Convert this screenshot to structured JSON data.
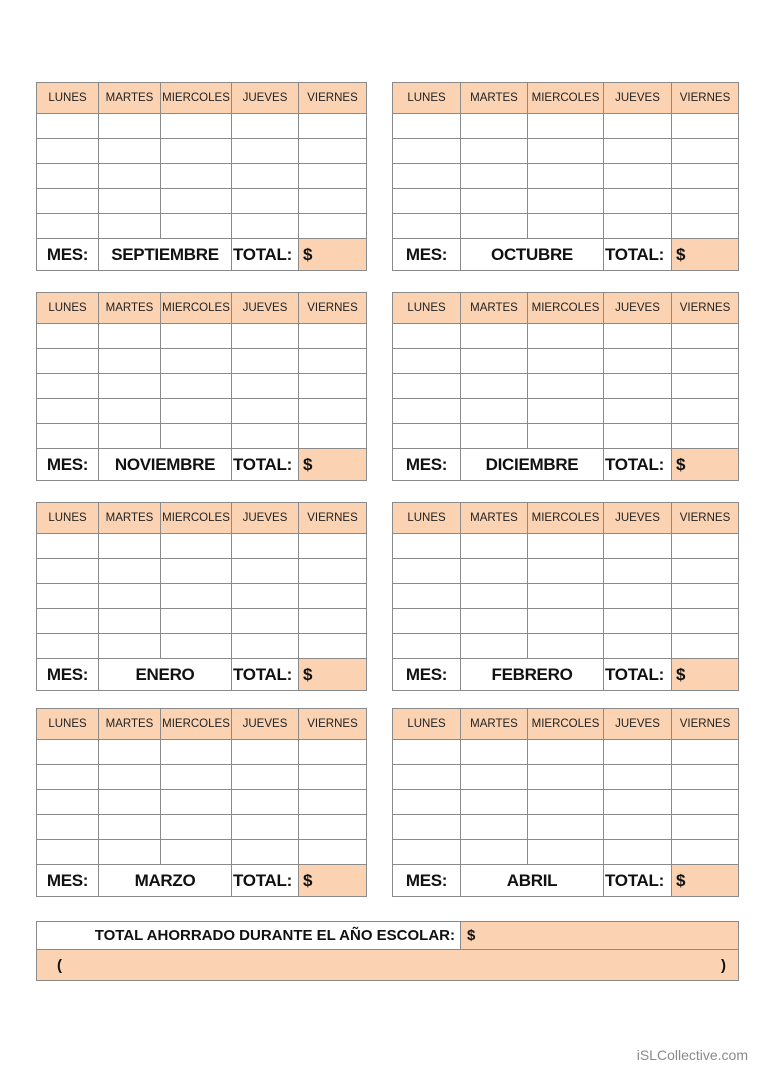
{
  "days": [
    "LUNES",
    "MARTES",
    "MIERCOLES",
    "JUEVES",
    "VIERNES"
  ],
  "mes_label": "MES:",
  "total_label": "TOTAL:",
  "currency": "$",
  "months": [
    "SEPTIEMBRE",
    "OCTUBRE",
    "NOVIEMBRE",
    "DICIEMBRE",
    "ENERO",
    "FEBRERO",
    "MARZO",
    "ABRIL"
  ],
  "grand_total": {
    "label": "TOTAL AHORRADO DURANTE EL AÑO ESCOLAR:",
    "currency": "$",
    "open_paren": "(",
    "close_paren": ")"
  },
  "watermark": "iSLCollective.com",
  "colors": {
    "header_fill": "#fbd3b3",
    "border": "#8a8a8a"
  }
}
